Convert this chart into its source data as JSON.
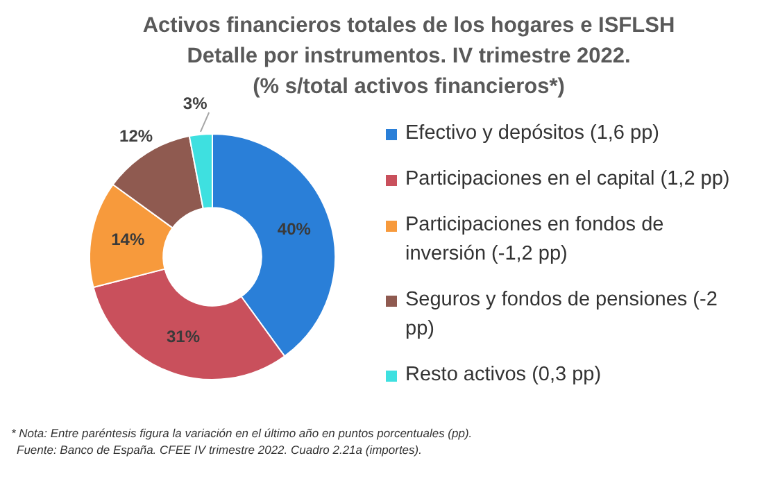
{
  "chart_data": {
    "type": "donut",
    "title": "Activos financieros totales de los hogares e ISFLSH\nDetalle por instrumentos. IV trimestre 2022.\n(% s/total activos financieros*)",
    "categories": [
      "Efectivo y depósitos  (1,6 pp)",
      "Participaciones en el capital (1,2 pp)",
      "Participaciones en fondos de inversión  (-1,2 pp)",
      "Seguros y fondos de pensiones (-2 pp)",
      "Resto activos  (0,3 pp)"
    ],
    "values": [
      40,
      31,
      14,
      12,
      3
    ],
    "value_labels": [
      "40%",
      "31%",
      "14%",
      "12%",
      "3%"
    ],
    "colors": [
      "#2a7fd8",
      "#c9505c",
      "#f79a3c",
      "#8f5a50",
      "#3ee0e0"
    ],
    "legend": "right",
    "annotations": [
      "* Nota: Entre paréntesis figura la variación en el último año en puntos porcentuales (pp).",
      "Fuente: Banco de España. CFEE IV trimestre 2022. Cuadro 2.21a (importes)."
    ]
  }
}
